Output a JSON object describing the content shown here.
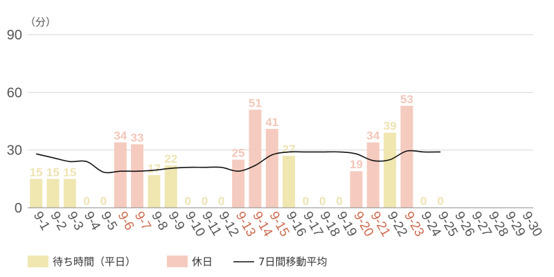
{
  "chart_data": {
    "type": "bar",
    "y_unit": "（分）",
    "ylim": [
      0,
      90
    ],
    "y_ticks": [
      0,
      30,
      60,
      90
    ],
    "grid": true,
    "legend_position": "bottom-left",
    "categories": [
      "9-1",
      "9-2",
      "9-3",
      "9-4",
      "9-5",
      "9-6",
      "9-7",
      "9-8",
      "9-9",
      "9-10",
      "9-11",
      "9-12",
      "9-13",
      "9-14",
      "9-15",
      "9-16",
      "9-17",
      "9-18",
      "9-19",
      "9-20",
      "9-21",
      "9-22",
      "9-23",
      "9-24",
      "9-25",
      "9-26",
      "9-27",
      "9-28",
      "9-29",
      "9-30"
    ],
    "day_type": [
      "weekday",
      "weekday",
      "weekday",
      "weekday",
      "weekday",
      "holiday",
      "holiday",
      "weekday",
      "weekday",
      "weekday",
      "weekday",
      "weekday",
      "holiday",
      "holiday",
      "holiday",
      "weekday",
      "weekday",
      "weekday",
      "weekday",
      "holiday",
      "holiday",
      "weekday",
      "holiday",
      "weekday",
      "weekday",
      "weekday",
      "weekday",
      "weekday",
      "weekday",
      "weekday"
    ],
    "values": [
      15,
      15,
      15,
      0,
      0,
      34,
      33,
      17,
      22,
      0,
      0,
      0,
      25,
      51,
      41,
      27,
      0,
      0,
      0,
      19,
      34,
      39,
      53,
      0,
      0,
      null,
      null,
      null,
      null,
      null
    ],
    "value_labels": [
      "15",
      "15",
      "15",
      "0",
      "0",
      "34",
      "33",
      "17",
      "22",
      "0",
      "0",
      "0",
      "25",
      "51",
      "41",
      "27",
      "0",
      "0",
      "0",
      "19",
      "34",
      "39",
      "53",
      "0",
      "0",
      "",
      "",
      "",
      "",
      ""
    ],
    "moving_average": [
      28,
      26,
      24,
      24,
      18.5,
      19,
      19,
      19.5,
      20.5,
      21,
      21,
      21,
      19,
      22,
      27.5,
      29,
      29,
      29,
      29,
      28,
      24.5,
      25,
      29.5,
      29,
      29,
      null,
      null,
      null,
      null,
      null
    ],
    "series": [
      {
        "name": "待ち時間（平日）",
        "color": "#f0e6b0",
        "label_color": "#eee3b2"
      },
      {
        "name": "休日",
        "color": "#f5cbbf",
        "label_color": "#f3c6b8"
      },
      {
        "name": "7日間移動平均",
        "color": "#111111"
      }
    ],
    "xtick_colors": {
      "weekday": "#555555",
      "holiday": "#cc6a50"
    }
  }
}
